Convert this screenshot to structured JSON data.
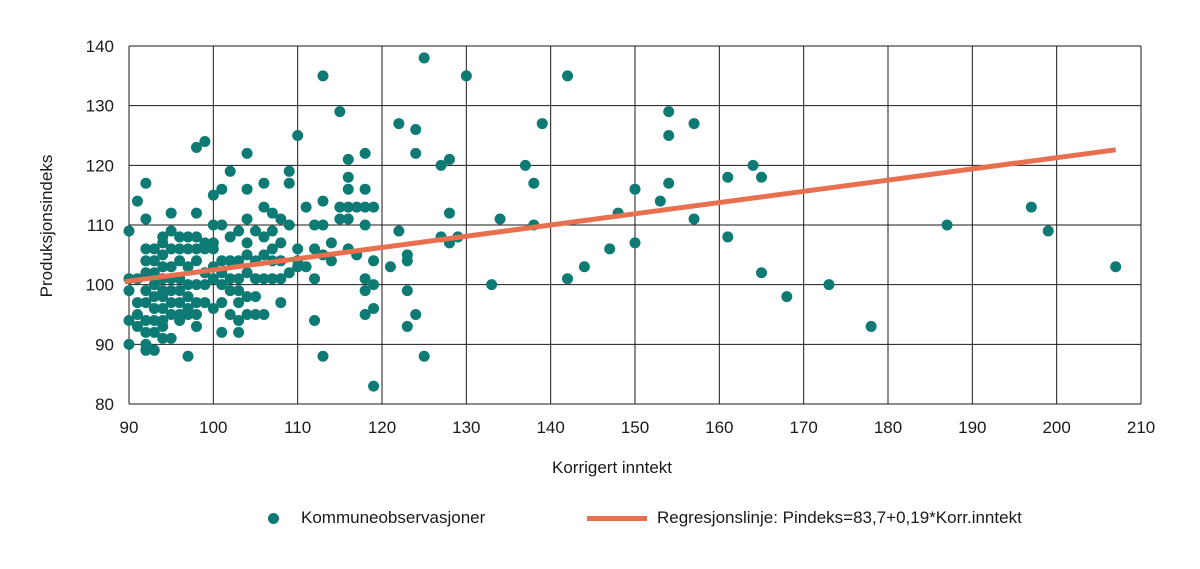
{
  "chart_data": {
    "type": "scatter",
    "xlabel": "Korrigert inntekt",
    "ylabel": "Produksjonsindeks",
    "xlim": [
      90,
      210
    ],
    "ylim": [
      80,
      140
    ],
    "x_ticks": [
      90,
      100,
      110,
      120,
      130,
      140,
      150,
      160,
      170,
      180,
      190,
      200,
      210
    ],
    "y_ticks": [
      80,
      90,
      100,
      110,
      120,
      130,
      140
    ],
    "grid": true,
    "legend_position": "bottom",
    "series": [
      {
        "name": "Kommuneobservasjoner",
        "kind": "scatter",
        "color": "#0e7a74",
        "points": [
          [
            90,
            109
          ],
          [
            90,
            101
          ],
          [
            90,
            99
          ],
          [
            90,
            94
          ],
          [
            90,
            90
          ],
          [
            91,
            95
          ],
          [
            91,
            93
          ],
          [
            91,
            97
          ],
          [
            91,
            101
          ],
          [
            91,
            114
          ],
          [
            92,
            117
          ],
          [
            92,
            111
          ],
          [
            92,
            106
          ],
          [
            92,
            104
          ],
          [
            92,
            102
          ],
          [
            92,
            99
          ],
          [
            92,
            97
          ],
          [
            92,
            94
          ],
          [
            92,
            92
          ],
          [
            92,
            90
          ],
          [
            92,
            89
          ],
          [
            93,
            106
          ],
          [
            93,
            104
          ],
          [
            93,
            102
          ],
          [
            93,
            100
          ],
          [
            93,
            98
          ],
          [
            93,
            96
          ],
          [
            93,
            94
          ],
          [
            93,
            92
          ],
          [
            93,
            89
          ],
          [
            94,
            108
          ],
          [
            94,
            107
          ],
          [
            94,
            105
          ],
          [
            94,
            103
          ],
          [
            94,
            101
          ],
          [
            94,
            99
          ],
          [
            94,
            98
          ],
          [
            94,
            96
          ],
          [
            94,
            94
          ],
          [
            94,
            93
          ],
          [
            94,
            91
          ],
          [
            95,
            112
          ],
          [
            95,
            109
          ],
          [
            95,
            106
          ],
          [
            95,
            103
          ],
          [
            95,
            101
          ],
          [
            95,
            99
          ],
          [
            95,
            97
          ],
          [
            95,
            95
          ],
          [
            95,
            91
          ],
          [
            96,
            108
          ],
          [
            96,
            106
          ],
          [
            96,
            104
          ],
          [
            96,
            101
          ],
          [
            96,
            99
          ],
          [
            96,
            97
          ],
          [
            96,
            95
          ],
          [
            96,
            94
          ],
          [
            97,
            108
          ],
          [
            97,
            106
          ],
          [
            97,
            103
          ],
          [
            97,
            100
          ],
          [
            97,
            98
          ],
          [
            97,
            96
          ],
          [
            97,
            95
          ],
          [
            97,
            88
          ],
          [
            98,
            123
          ],
          [
            98,
            112
          ],
          [
            98,
            108
          ],
          [
            98,
            106
          ],
          [
            98,
            104
          ],
          [
            98,
            100
          ],
          [
            98,
            97
          ],
          [
            98,
            95
          ],
          [
            98,
            93
          ],
          [
            99,
            124
          ],
          [
            99,
            107
          ],
          [
            99,
            106
          ],
          [
            99,
            102
          ],
          [
            99,
            100
          ],
          [
            99,
            97
          ],
          [
            100,
            115
          ],
          [
            100,
            110
          ],
          [
            100,
            107
          ],
          [
            100,
            106
          ],
          [
            100,
            103
          ],
          [
            100,
            101
          ],
          [
            100,
            96
          ],
          [
            101,
            116
          ],
          [
            101,
            110
          ],
          [
            101,
            104
          ],
          [
            101,
            102
          ],
          [
            101,
            100
          ],
          [
            101,
            97
          ],
          [
            101,
            92
          ],
          [
            102,
            119
          ],
          [
            102,
            108
          ],
          [
            102,
            104
          ],
          [
            102,
            101
          ],
          [
            102,
            99
          ],
          [
            102,
            95
          ],
          [
            103,
            109
          ],
          [
            103,
            104
          ],
          [
            103,
            101
          ],
          [
            103,
            99
          ],
          [
            103,
            97
          ],
          [
            103,
            94
          ],
          [
            103,
            92
          ],
          [
            104,
            122
          ],
          [
            104,
            116
          ],
          [
            104,
            111
          ],
          [
            104,
            107
          ],
          [
            104,
            105
          ],
          [
            104,
            102
          ],
          [
            104,
            98
          ],
          [
            104,
            95
          ],
          [
            105,
            109
          ],
          [
            105,
            104
          ],
          [
            105,
            101
          ],
          [
            105,
            98
          ],
          [
            105,
            95
          ],
          [
            106,
            117
          ],
          [
            106,
            113
          ],
          [
            106,
            108
          ],
          [
            106,
            105
          ],
          [
            106,
            101
          ],
          [
            106,
            95
          ],
          [
            107,
            112
          ],
          [
            107,
            109
          ],
          [
            107,
            106
          ],
          [
            107,
            104
          ],
          [
            107,
            101
          ],
          [
            108,
            111
          ],
          [
            108,
            107
          ],
          [
            108,
            104
          ],
          [
            108,
            101
          ],
          [
            108,
            97
          ],
          [
            109,
            119
          ],
          [
            109,
            117
          ],
          [
            109,
            110
          ],
          [
            109,
            102
          ],
          [
            110,
            125
          ],
          [
            110,
            106
          ],
          [
            110,
            104
          ],
          [
            110,
            103
          ],
          [
            111,
            113
          ],
          [
            111,
            103
          ],
          [
            112,
            110
          ],
          [
            112,
            106
          ],
          [
            112,
            101
          ],
          [
            112,
            94
          ],
          [
            113,
            135
          ],
          [
            113,
            114
          ],
          [
            113,
            110
          ],
          [
            113,
            105
          ],
          [
            113,
            88
          ],
          [
            114,
            107
          ],
          [
            114,
            104
          ],
          [
            115,
            129
          ],
          [
            115,
            113
          ],
          [
            115,
            111
          ],
          [
            116,
            121
          ],
          [
            116,
            118
          ],
          [
            116,
            116
          ],
          [
            116,
            113
          ],
          [
            116,
            111
          ],
          [
            116,
            106
          ],
          [
            117,
            113
          ],
          [
            117,
            105
          ],
          [
            118,
            122
          ],
          [
            118,
            116
          ],
          [
            118,
            113
          ],
          [
            118,
            110
          ],
          [
            118,
            101
          ],
          [
            118,
            99
          ],
          [
            118,
            95
          ],
          [
            119,
            113
          ],
          [
            119,
            104
          ],
          [
            119,
            100
          ],
          [
            119,
            96
          ],
          [
            119,
            83
          ],
          [
            121,
            103
          ],
          [
            122,
            127
          ],
          [
            122,
            109
          ],
          [
            123,
            105
          ],
          [
            123,
            104
          ],
          [
            123,
            99
          ],
          [
            123,
            93
          ],
          [
            124,
            126
          ],
          [
            124,
            122
          ],
          [
            124,
            95
          ],
          [
            125,
            138
          ],
          [
            125,
            88
          ],
          [
            127,
            120
          ],
          [
            127,
            108
          ],
          [
            128,
            121
          ],
          [
            128,
            112
          ],
          [
            128,
            107
          ],
          [
            129,
            108
          ],
          [
            130,
            135
          ],
          [
            133,
            100
          ],
          [
            134,
            111
          ],
          [
            137,
            120
          ],
          [
            138,
            117
          ],
          [
            138,
            110
          ],
          [
            139,
            127
          ],
          [
            142,
            135
          ],
          [
            142,
            101
          ],
          [
            144,
            103
          ],
          [
            147,
            106
          ],
          [
            148,
            112
          ],
          [
            150,
            116
          ],
          [
            150,
            107
          ],
          [
            153,
            114
          ],
          [
            154,
            129
          ],
          [
            154,
            125
          ],
          [
            154,
            117
          ],
          [
            157,
            127
          ],
          [
            157,
            111
          ],
          [
            161,
            118
          ],
          [
            161,
            108
          ],
          [
            164,
            120
          ],
          [
            165,
            118
          ],
          [
            165,
            102
          ],
          [
            168,
            98
          ],
          [
            173,
            100
          ],
          [
            178,
            93
          ],
          [
            187,
            110
          ],
          [
            197,
            113
          ],
          [
            199,
            109
          ],
          [
            207,
            103
          ]
        ]
      },
      {
        "name": "Regresjonslinje: Pindeks=83,7+0,19*Korr.inntekt",
        "kind": "line",
        "color": "#e8704f",
        "points": [
          [
            89.5,
            100.5
          ],
          [
            207,
            122.6
          ]
        ]
      }
    ]
  }
}
